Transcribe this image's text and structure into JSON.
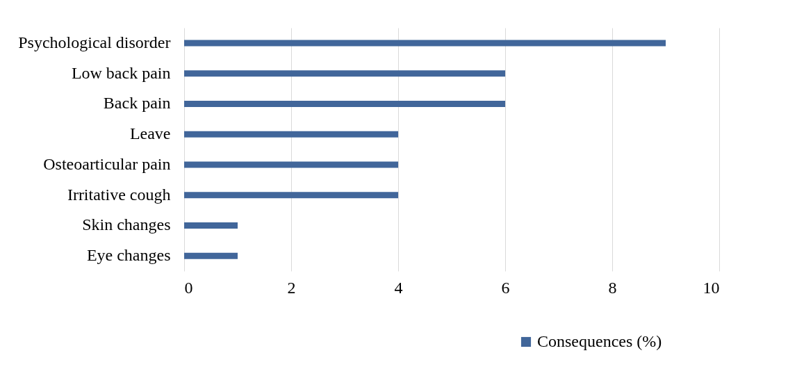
{
  "chart_data": {
    "type": "bar",
    "orientation": "horizontal",
    "categories": [
      "Psychological disorder",
      "Low back pain",
      "Back pain",
      "Leave",
      "Osteoarticular pain",
      "Irritative cough",
      "Skin changes",
      "Eye changes"
    ],
    "series": [
      {
        "name": "Consequences (%)",
        "color": "#41669a",
        "values": [
          9,
          6,
          6,
          4,
          4,
          4,
          1,
          1
        ]
      }
    ],
    "xlim": [
      0,
      10
    ],
    "xticks": [
      0,
      2,
      4,
      6,
      8,
      10
    ],
    "grid": "x",
    "legend": "bottom right"
  }
}
